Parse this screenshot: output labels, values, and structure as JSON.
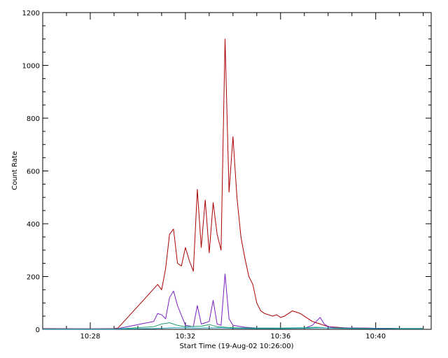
{
  "chart_data": {
    "type": "line",
    "title": "",
    "xlabel": "Start Time (19-Aug-02 10:26:00)",
    "ylabel": "Count Rate",
    "x_unit": "time (HH:MM)",
    "xlim": [
      "10:26:00",
      "10:42:20"
    ],
    "ylim": [
      0,
      1200
    ],
    "grid": false,
    "x_ticks": [
      {
        "value": "10:28:00",
        "label": "10:28"
      },
      {
        "value": "10:32:00",
        "label": "10:32"
      },
      {
        "value": "10:36:00",
        "label": "10:36"
      },
      {
        "value": "10:40:00",
        "label": "10:40"
      }
    ],
    "y_ticks": [
      0,
      200,
      400,
      600,
      800,
      1000,
      1200
    ],
    "series": [
      {
        "color": "#aa0000",
        "x": [
          "10:26:00",
          "10:28:00",
          "10:29:00",
          "10:29:10",
          "10:30:20",
          "10:30:50",
          "10:31:00",
          "10:31:10",
          "10:31:20",
          "10:31:30",
          "10:31:40",
          "10:31:50",
          "10:32:00",
          "10:32:10",
          "10:32:20",
          "10:32:30",
          "10:32:40",
          "10:32:50",
          "10:33:00",
          "10:33:10",
          "10:33:20",
          "10:33:30",
          "10:33:40",
          "10:33:50",
          "10:34:00",
          "10:34:10",
          "10:34:20",
          "10:34:30",
          "10:34:40",
          "10:34:50",
          "10:35:00",
          "10:35:10",
          "10:35:20",
          "10:35:30",
          "10:35:40",
          "10:35:50",
          "10:36:00",
          "10:36:10",
          "10:36:30",
          "10:36:50",
          "10:37:10",
          "10:37:20",
          "10:37:30",
          "10:37:40",
          "10:37:50",
          "10:38:00",
          "10:38:20",
          "10:38:40",
          "10:39:00",
          "10:39:30",
          "10:40:00",
          "10:40:30",
          "10:41:00",
          "10:41:30",
          "10:42:00"
        ],
        "y": [
          3,
          2,
          3,
          5,
          120,
          170,
          150,
          230,
          360,
          380,
          250,
          240,
          310,
          260,
          220,
          530,
          310,
          490,
          290,
          480,
          360,
          300,
          1100,
          520,
          730,
          500,
          350,
          270,
          200,
          170,
          100,
          70,
          60,
          55,
          50,
          55,
          45,
          50,
          70,
          60,
          40,
          30,
          25,
          20,
          15,
          10,
          8,
          6,
          5,
          5,
          4,
          4,
          3,
          3,
          3
        ]
      },
      {
        "color": "#7a1fbf",
        "x": [
          "10:26:00",
          "10:28:00",
          "10:29:00",
          "10:29:10",
          "10:30:40",
          "10:30:50",
          "10:31:00",
          "10:31:10",
          "10:31:20",
          "10:31:30",
          "10:31:40",
          "10:32:00",
          "10:32:20",
          "10:32:30",
          "10:32:40",
          "10:32:50",
          "10:33:00",
          "10:33:10",
          "10:33:20",
          "10:33:30",
          "10:33:40",
          "10:33:50",
          "10:34:00",
          "10:34:30",
          "10:35:00",
          "10:36:00",
          "10:37:00",
          "10:37:20",
          "10:37:30",
          "10:37:40",
          "10:37:50",
          "10:38:00",
          "10:38:20",
          "10:39:00",
          "10:40:00",
          "10:41:00",
          "10:42:00"
        ],
        "y": [
          2,
          2,
          2,
          3,
          30,
          60,
          55,
          40,
          120,
          145,
          90,
          15,
          10,
          90,
          20,
          25,
          30,
          110,
          20,
          15,
          210,
          40,
          15,
          8,
          5,
          4,
          4,
          15,
          30,
          45,
          20,
          10,
          6,
          5,
          4,
          3,
          3
        ]
      },
      {
        "color": "#1f9d6f",
        "x": [
          "10:26:00",
          "10:29:00",
          "10:30:40",
          "10:31:00",
          "10:31:20",
          "10:31:40",
          "10:32:00",
          "10:32:40",
          "10:33:00",
          "10:33:20",
          "10:33:40",
          "10:34:00",
          "10:35:00",
          "10:36:00",
          "10:37:00",
          "10:37:30",
          "10:37:50",
          "10:38:20",
          "10:39:00",
          "10:40:00",
          "10:41:00",
          "10:42:00"
        ],
        "y": [
          1,
          1,
          10,
          20,
          25,
          15,
          10,
          12,
          18,
          10,
          8,
          6,
          5,
          5,
          6,
          8,
          6,
          5,
          4,
          3,
          3,
          3
        ]
      },
      {
        "color": "#1f9fbf",
        "x": [
          "10:26:00",
          "10:29:00",
          "10:30:40",
          "10:31:30",
          "10:32:30",
          "10:33:30",
          "10:34:00",
          "10:35:00",
          "10:36:00",
          "10:37:00",
          "10:37:40",
          "10:38:20",
          "10:39:00",
          "10:40:00",
          "10:41:00",
          "10:42:00"
        ],
        "y": [
          1,
          1,
          3,
          6,
          5,
          6,
          4,
          3,
          3,
          4,
          6,
          4,
          3,
          3,
          2,
          2
        ]
      }
    ]
  }
}
